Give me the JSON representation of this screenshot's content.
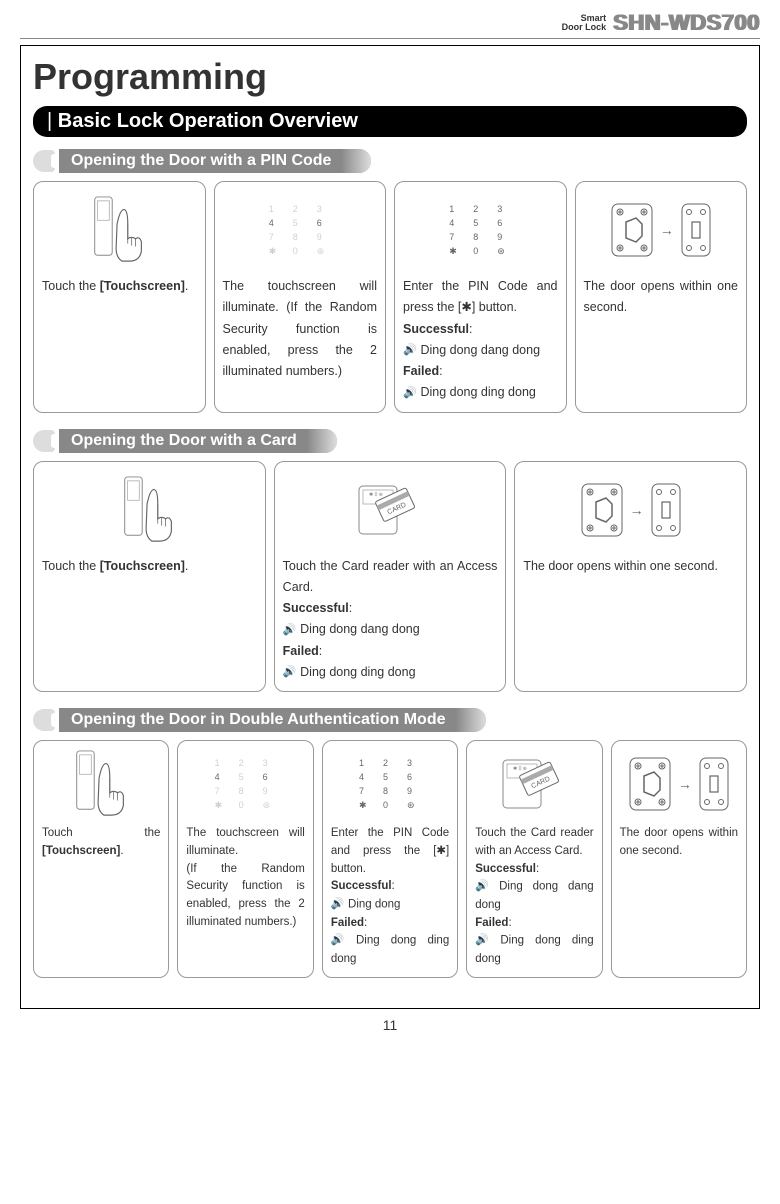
{
  "header": {
    "brand_small_line1": "Smart",
    "brand_small_line2": "Door Lock",
    "model": "SHN-WDS700"
  },
  "page_title": "Programming",
  "section_title": "Basic Lock Operation Overview",
  "page_number": "11",
  "subsections": [
    {
      "title": "Opening the Door with a PIN Code",
      "steps": [
        {
          "text_parts": [
            {
              "t": "Touch the "
            },
            {
              "t": "[Touchscreen]",
              "bold": true
            },
            {
              "t": "."
            }
          ],
          "img": "hand"
        },
        {
          "text_parts": [
            {
              "t": "The touchscreen will illuminate. (If the Random Security function is enabled, press the 2 illuminated numbers.)"
            }
          ],
          "img": "keypad-dim"
        },
        {
          "text_parts": [
            {
              "t": "Enter the PIN Code and press the [✱] button."
            },
            {
              "br": true
            },
            {
              "t": "Successful",
              "bold": true
            },
            {
              "t": ":"
            },
            {
              "br": true
            },
            {
              "snd": true
            },
            {
              "t": " Ding dong dang dong"
            },
            {
              "br": true
            },
            {
              "t": "Failed",
              "bold": true
            },
            {
              "t": ":"
            },
            {
              "br": true
            },
            {
              "snd": true
            },
            {
              "t": " Ding dong ding dong"
            }
          ],
          "img": "keypad-full"
        },
        {
          "text_parts": [
            {
              "t": "The door opens within one second."
            }
          ],
          "img": "latch"
        }
      ]
    },
    {
      "title": "Opening the Door with a Card",
      "steps": [
        {
          "text_parts": [
            {
              "t": "Touch the "
            },
            {
              "t": "[Touchscreen]",
              "bold": true
            },
            {
              "t": "."
            }
          ],
          "img": "hand"
        },
        {
          "text_parts": [
            {
              "t": "Touch the Card reader with an Access Card."
            },
            {
              "br": true
            },
            {
              "t": "Successful",
              "bold": true
            },
            {
              "t": ":"
            },
            {
              "br": true
            },
            {
              "snd": true
            },
            {
              "t": " Ding dong dang dong"
            },
            {
              "br": true
            },
            {
              "t": "Failed",
              "bold": true
            },
            {
              "t": ":"
            },
            {
              "br": true
            },
            {
              "snd": true
            },
            {
              "t": " Ding dong ding dong"
            }
          ],
          "img": "card"
        },
        {
          "text_parts": [
            {
              "t": "The door opens within one second."
            }
          ],
          "img": "latch"
        }
      ]
    },
    {
      "title": "Opening the Door in Double Authentication Mode",
      "small": true,
      "steps": [
        {
          "text_parts": [
            {
              "t": "Touch the "
            },
            {
              "t": "[Touchscreen]",
              "bold": true
            },
            {
              "t": "."
            }
          ],
          "img": "hand"
        },
        {
          "text_parts": [
            {
              "t": "The touchscreen will illuminate."
            },
            {
              "br": true
            },
            {
              "t": "(If the Random Security function is enabled, press the 2 illuminated numbers.)"
            }
          ],
          "img": "keypad-dim"
        },
        {
          "text_parts": [
            {
              "t": "Enter the PIN Code and press the [✱] button."
            },
            {
              "br": true
            },
            {
              "t": "Successful",
              "bold": true
            },
            {
              "t": ":"
            },
            {
              "br": true
            },
            {
              "snd": true
            },
            {
              "t": " Ding dong"
            },
            {
              "br": true
            },
            {
              "t": "Failed",
              "bold": true
            },
            {
              "t": ":"
            },
            {
              "br": true
            },
            {
              "snd": true
            },
            {
              "t": " Ding dong ding dong"
            }
          ],
          "img": "keypad-full"
        },
        {
          "text_parts": [
            {
              "t": "Touch the Card reader with an Access Card."
            },
            {
              "br": true
            },
            {
              "t": "Successful",
              "bold": true
            },
            {
              "t": ":"
            },
            {
              "br": true
            },
            {
              "snd": true
            },
            {
              "t": " Ding dong dang dong"
            },
            {
              "br": true
            },
            {
              "t": "Failed",
              "bold": true
            },
            {
              "t": ":"
            },
            {
              "br": true
            },
            {
              "snd": true
            },
            {
              "t": " Ding dong ding dong"
            }
          ],
          "img": "card"
        },
        {
          "text_parts": [
            {
              "t": "The door opens within one second."
            }
          ],
          "img": "latch"
        }
      ]
    }
  ],
  "keypad_keys": [
    "1",
    "2",
    "3",
    "4",
    "5",
    "6",
    "7",
    "8",
    "9",
    "✱",
    "0",
    "⊛"
  ],
  "keypad_dim_visible": [
    "4",
    "6"
  ],
  "colors": {
    "section_bg": "#000000",
    "subsection_bg": "#888888",
    "border": "#999999",
    "text": "#333333"
  }
}
